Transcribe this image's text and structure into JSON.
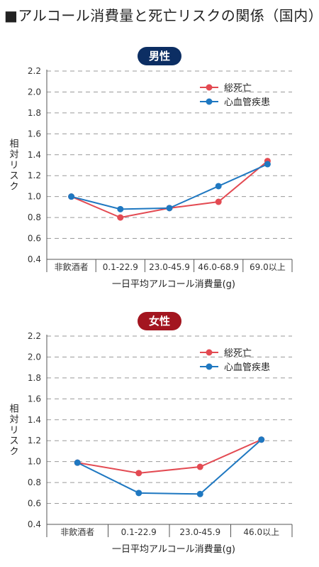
{
  "title": "■アルコール消費量と死亡リスクの関係（国内）",
  "colors": {
    "red": "#e34a52",
    "blue": "#1f78c1",
    "male_badge": "#0c2e63",
    "female_badge": "#a3151f"
  },
  "chart_data": [
    {
      "type": "line",
      "title": "男性",
      "xlabel": "一日平均アルコール消費量(g)",
      "ylabel": "相対リスク",
      "ylim": [
        0.4,
        2.2
      ],
      "yticks": [
        "0.4",
        "0.6",
        "0.8",
        "1.0",
        "1.2",
        "1.4",
        "1.6",
        "1.8",
        "2.0",
        "2.2"
      ],
      "grid": true,
      "legend_position": "top-right",
      "categories": [
        "非飲酒者",
        "0.1-22.9",
        "23.0-45.9",
        "46.0-68.9",
        "69.0以上"
      ],
      "series": [
        {
          "name": "総死亡",
          "color": "#e34a52",
          "values": [
            1.0,
            0.8,
            0.89,
            0.95,
            1.34
          ]
        },
        {
          "name": "心血管疾患",
          "color": "#1f78c1",
          "values": [
            1.0,
            0.88,
            0.89,
            1.1,
            1.31
          ]
        }
      ]
    },
    {
      "type": "line",
      "title": "女性",
      "xlabel": "一日平均アルコール消費量(g)",
      "ylabel": "相対リスク",
      "ylim": [
        0.4,
        2.2
      ],
      "yticks": [
        "0.4",
        "0.6",
        "0.8",
        "1.0",
        "1.2",
        "1.4",
        "1.6",
        "1.8",
        "2.0",
        "2.2"
      ],
      "grid": true,
      "legend_position": "top-right",
      "categories": [
        "非飲酒者",
        "0.1-22.9",
        "23.0-45.9",
        "46.0以上"
      ],
      "series": [
        {
          "name": "総死亡",
          "color": "#e34a52",
          "values": [
            0.99,
            0.89,
            0.95,
            1.21
          ]
        },
        {
          "name": "心血管疾患",
          "color": "#1f78c1",
          "values": [
            0.99,
            0.7,
            0.69,
            1.21
          ]
        }
      ]
    }
  ]
}
